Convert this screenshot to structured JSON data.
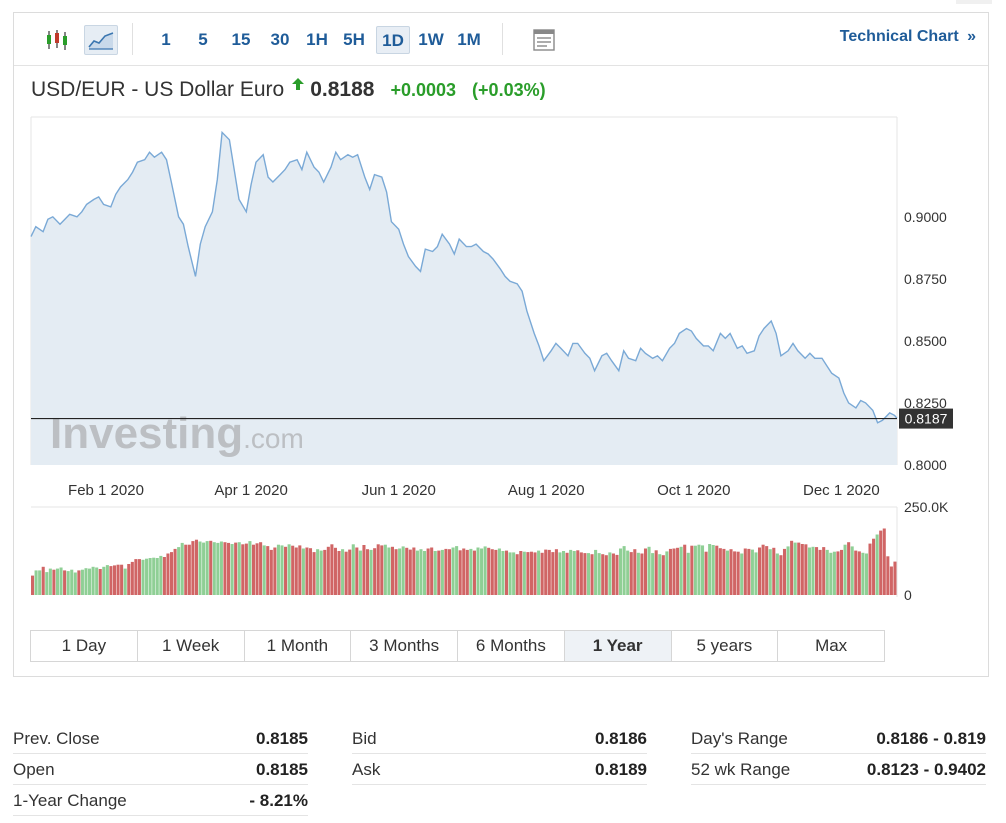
{
  "toolbar": {
    "candle_icon": "candlestick-icon",
    "area_icon": "area-chart-icon",
    "timeframes": [
      "1",
      "5",
      "15",
      "30",
      "1H",
      "5H",
      "1D",
      "1W",
      "1M"
    ],
    "active_timeframe": "1D",
    "settings_icon": "chart-settings-icon",
    "technical_label": "Technical Chart",
    "technical_arrow": "»"
  },
  "header": {
    "pair": "USD/EUR - US Dollar Euro",
    "last": "0.8188",
    "change": "+0.0003",
    "change_pct": "(+0.03%)"
  },
  "colors": {
    "line": "#7aa9d6",
    "area": "#e4ecf3",
    "up_bar": "#8fcf95",
    "down_bar": "#d06565",
    "positive": "#2a9d2a",
    "link": "#1f5c99"
  },
  "chart_data": {
    "type": "area",
    "price": {
      "y_ticks": [
        "0.9000",
        "0.8750",
        "0.8500",
        "0.8250",
        "0.8000"
      ],
      "y_values": [
        0.9,
        0.875,
        0.85,
        0.825,
        0.8
      ],
      "ylim": [
        0.8,
        0.9402
      ],
      "x_ticks": [
        "Feb 1 2020",
        "Apr 1 2020",
        "Jun 1 2020",
        "Aug 1 2020",
        "Oct 1 2020",
        "Dec 1 2020"
      ],
      "current_value": 0.8187,
      "current_label": "0.8187",
      "series": [
        [
          "2020-01-01",
          0.892
        ],
        [
          "2020-01-03",
          0.896
        ],
        [
          "2020-01-06",
          0.894
        ],
        [
          "2020-01-08",
          0.899
        ],
        [
          "2020-01-10",
          0.9
        ],
        [
          "2020-01-13",
          0.897
        ],
        [
          "2020-01-15",
          0.899
        ],
        [
          "2020-01-17",
          0.901
        ],
        [
          "2020-01-20",
          0.9
        ],
        [
          "2020-01-22",
          0.902
        ],
        [
          "2020-01-24",
          0.905
        ],
        [
          "2020-01-27",
          0.907
        ],
        [
          "2020-01-29",
          0.908
        ],
        [
          "2020-01-31",
          0.905
        ],
        [
          "2020-02-03",
          0.904
        ],
        [
          "2020-02-05",
          0.909
        ],
        [
          "2020-02-07",
          0.912
        ],
        [
          "2020-02-10",
          0.915
        ],
        [
          "2020-02-12",
          0.918
        ],
        [
          "2020-02-14",
          0.922
        ],
        [
          "2020-02-17",
          0.923
        ],
        [
          "2020-02-19",
          0.926
        ],
        [
          "2020-02-21",
          0.924
        ],
        [
          "2020-02-24",
          0.926
        ],
        [
          "2020-02-26",
          0.923
        ],
        [
          "2020-02-28",
          0.914
        ],
        [
          "2020-03-02",
          0.9
        ],
        [
          "2020-03-04",
          0.897
        ],
        [
          "2020-03-06",
          0.888
        ],
        [
          "2020-03-09",
          0.876
        ],
        [
          "2020-03-11",
          0.889
        ],
        [
          "2020-03-13",
          0.896
        ],
        [
          "2020-03-16",
          0.902
        ],
        [
          "2020-03-18",
          0.915
        ],
        [
          "2020-03-20",
          0.934
        ],
        [
          "2020-03-23",
          0.931
        ],
        [
          "2020-03-25",
          0.919
        ],
        [
          "2020-03-27",
          0.907
        ],
        [
          "2020-03-30",
          0.902
        ],
        [
          "2020-04-01",
          0.913
        ],
        [
          "2020-04-03",
          0.922
        ],
        [
          "2020-04-06",
          0.925
        ],
        [
          "2020-04-08",
          0.916
        ],
        [
          "2020-04-10",
          0.914
        ],
        [
          "2020-04-13",
          0.917
        ],
        [
          "2020-04-15",
          0.919
        ],
        [
          "2020-04-17",
          0.922
        ],
        [
          "2020-04-20",
          0.923
        ],
        [
          "2020-04-22",
          0.919
        ],
        [
          "2020-04-24",
          0.926
        ],
        [
          "2020-04-27",
          0.92
        ],
        [
          "2020-04-29",
          0.918
        ],
        [
          "2020-05-01",
          0.914
        ],
        [
          "2020-05-04",
          0.92
        ],
        [
          "2020-05-06",
          0.926
        ],
        [
          "2020-05-08",
          0.923
        ],
        [
          "2020-05-11",
          0.925
        ],
        [
          "2020-05-13",
          0.924
        ],
        [
          "2020-05-15",
          0.925
        ],
        [
          "2020-05-18",
          0.916
        ],
        [
          "2020-05-20",
          0.911
        ],
        [
          "2020-05-22",
          0.917
        ],
        [
          "2020-05-25",
          0.916
        ],
        [
          "2020-05-27",
          0.91
        ],
        [
          "2020-05-29",
          0.898
        ],
        [
          "2020-06-01",
          0.895
        ],
        [
          "2020-06-03",
          0.889
        ],
        [
          "2020-06-05",
          0.884
        ],
        [
          "2020-06-08",
          0.88
        ],
        [
          "2020-06-10",
          0.878
        ],
        [
          "2020-06-12",
          0.887
        ],
        [
          "2020-06-15",
          0.886
        ],
        [
          "2020-06-17",
          0.888
        ],
        [
          "2020-06-19",
          0.893
        ],
        [
          "2020-06-22",
          0.889
        ],
        [
          "2020-06-24",
          0.885
        ],
        [
          "2020-06-26",
          0.891
        ],
        [
          "2020-06-29",
          0.888
        ],
        [
          "2020-07-01",
          0.888
        ],
        [
          "2020-07-03",
          0.889
        ],
        [
          "2020-07-06",
          0.886
        ],
        [
          "2020-07-08",
          0.885
        ],
        [
          "2020-07-10",
          0.883
        ],
        [
          "2020-07-13",
          0.879
        ],
        [
          "2020-07-15",
          0.876
        ],
        [
          "2020-07-17",
          0.874
        ],
        [
          "2020-07-20",
          0.873
        ],
        [
          "2020-07-22",
          0.87
        ],
        [
          "2020-07-24",
          0.862
        ],
        [
          "2020-07-27",
          0.853
        ],
        [
          "2020-07-29",
          0.848
        ],
        [
          "2020-07-31",
          0.842
        ],
        [
          "2020-08-03",
          0.846
        ],
        [
          "2020-08-05",
          0.849
        ],
        [
          "2020-08-07",
          0.847
        ],
        [
          "2020-08-10",
          0.844
        ],
        [
          "2020-08-12",
          0.849
        ],
        [
          "2020-08-14",
          0.849
        ],
        [
          "2020-08-17",
          0.845
        ],
        [
          "2020-08-19",
          0.843
        ],
        [
          "2020-08-21",
          0.838
        ],
        [
          "2020-08-24",
          0.844
        ],
        [
          "2020-08-26",
          0.845
        ],
        [
          "2020-08-28",
          0.842
        ],
        [
          "2020-08-31",
          0.838
        ],
        [
          "2020-09-02",
          0.846
        ],
        [
          "2020-09-04",
          0.843
        ],
        [
          "2020-09-07",
          0.842
        ],
        [
          "2020-09-09",
          0.847
        ],
        [
          "2020-09-11",
          0.845
        ],
        [
          "2020-09-14",
          0.843
        ],
        [
          "2020-09-16",
          0.844
        ],
        [
          "2020-09-18",
          0.842
        ],
        [
          "2020-09-21",
          0.847
        ],
        [
          "2020-09-23",
          0.849
        ],
        [
          "2020-09-25",
          0.853
        ],
        [
          "2020-09-28",
          0.855
        ],
        [
          "2020-09-30",
          0.854
        ],
        [
          "2020-10-02",
          0.851
        ],
        [
          "2020-10-05",
          0.848
        ],
        [
          "2020-10-07",
          0.848
        ],
        [
          "2020-10-09",
          0.846
        ],
        [
          "2020-10-12",
          0.853
        ],
        [
          "2020-10-14",
          0.851
        ],
        [
          "2020-10-16",
          0.853
        ],
        [
          "2020-10-19",
          0.847
        ],
        [
          "2020-10-21",
          0.848
        ],
        [
          "2020-10-23",
          0.845
        ],
        [
          "2020-10-26",
          0.846
        ],
        [
          "2020-10-28",
          0.852
        ],
        [
          "2020-10-30",
          0.855
        ],
        [
          "2020-11-02",
          0.858
        ],
        [
          "2020-11-04",
          0.853
        ],
        [
          "2020-11-06",
          0.844
        ],
        [
          "2020-11-09",
          0.846
        ],
        [
          "2020-11-11",
          0.849
        ],
        [
          "2020-11-13",
          0.846
        ],
        [
          "2020-11-16",
          0.843
        ],
        [
          "2020-11-18",
          0.845
        ],
        [
          "2020-11-20",
          0.843
        ],
        [
          "2020-11-23",
          0.843
        ],
        [
          "2020-11-25",
          0.84
        ],
        [
          "2020-11-27",
          0.837
        ],
        [
          "2020-11-30",
          0.835
        ],
        [
          "2020-12-02",
          0.829
        ],
        [
          "2020-12-04",
          0.825
        ],
        [
          "2020-12-07",
          0.823
        ],
        [
          "2020-12-09",
          0.826
        ],
        [
          "2020-12-11",
          0.825
        ],
        [
          "2020-12-14",
          0.822
        ],
        [
          "2020-12-16",
          0.817
        ],
        [
          "2020-12-18",
          0.818
        ],
        [
          "2020-12-21",
          0.821
        ],
        [
          "2020-12-23",
          0.82
        ],
        [
          "2020-12-24",
          0.8188
        ]
      ]
    },
    "volume": {
      "y_ticks": [
        "250.0K",
        "0"
      ],
      "ylim": [
        0,
        250000
      ],
      "up": [
        0,
        1,
        1,
        0,
        1,
        1,
        0,
        1,
        1,
        0,
        1,
        1,
        1,
        0,
        1,
        1,
        1,
        1,
        1,
        0,
        1,
        1,
        0,
        0,
        0,
        0,
        1,
        0,
        0,
        0,
        0,
        1,
        1,
        1,
        1,
        1,
        1,
        0,
        0,
        0,
        0,
        1,
        1,
        0,
        0,
        0,
        0,
        1,
        1,
        1,
        0,
        1,
        1,
        1,
        0,
        0,
        1,
        0,
        1,
        0,
        0,
        1,
        0,
        0,
        0,
        1,
        0,
        0,
        0,
        1,
        1,
        0,
        1,
        0,
        0,
        0,
        1,
        0,
        0,
        0,
        1,
        1,
        0,
        0,
        0,
        0,
        0,
        1,
        0,
        0,
        1,
        0,
        1,
        0,
        0,
        1,
        0,
        0,
        0,
        1,
        1,
        0,
        0,
        1,
        1,
        0,
        0,
        0,
        1,
        1,
        1,
        0,
        0,
        1,
        0,
        1,
        0,
        0,
        1,
        1,
        0,
        0,
        0,
        1,
        0,
        1,
        1,
        1,
        0,
        0,
        0,
        1,
        1,
        0,
        1,
        1,
        0,
        0,
        1,
        0,
        0,
        0,
        1,
        0,
        0,
        0,
        0,
        0,
        1,
        1,
        0,
        1,
        1,
        0,
        0,
        0,
        1,
        0,
        1,
        1,
        0,
        0,
        1,
        0,
        0,
        1,
        1,
        1,
        0,
        0,
        1,
        0,
        0,
        1,
        1,
        0,
        1,
        0,
        1,
        0,
        0,
        0,
        1,
        0,
        1,
        0,
        1,
        1,
        1,
        0,
        1,
        1,
        0,
        0,
        0,
        1,
        0,
        0,
        0,
        1,
        0,
        0,
        1,
        1,
        0,
        0,
        0,
        1,
        0,
        1,
        0,
        0,
        1,
        0,
        1,
        0,
        0,
        0,
        1,
        1,
        0,
        0,
        0,
        1,
        1,
        1,
        0,
        0,
        1,
        0,
        1,
        0,
        0,
        1,
        1,
        0,
        0,
        1
      ],
      "values": [
        55000,
        70000,
        70000,
        80000,
        65000,
        75000,
        72000,
        75000,
        78000,
        70000,
        68000,
        72000,
        64000,
        70000,
        72000,
        76000,
        75000,
        80000,
        78000,
        74000,
        80000,
        85000,
        82000,
        84000,
        86000,
        86000,
        75000,
        88000,
        94000,
        102000,
        102000,
        100000,
        103000,
        105000,
        106000,
        105000,
        111000,
        108000,
        118000,
        122000,
        131000,
        136000,
        148000,
        143000,
        143000,
        153000,
        157000,
        152000,
        149000,
        153000,
        154000,
        150000,
        148000,
        152000,
        150000,
        148000,
        145000,
        149000,
        150000,
        144000,
        146000,
        153000,
        143000,
        147000,
        150000,
        141000,
        139000,
        128000,
        135000,
        143000,
        141000,
        137000,
        144000,
        140000,
        135000,
        141000,
        132000,
        135000,
        133000,
        122000,
        130000,
        126000,
        128000,
        137000,
        144000,
        134000,
        125000,
        130000,
        123000,
        129000,
        144000,
        135000,
        126000,
        142000,
        130000,
        128000,
        133000,
        144000,
        141000,
        143000,
        135000,
        137000,
        130000,
        132000,
        138000,
        134000,
        129000,
        135000,
        126000,
        130000,
        125000,
        132000,
        135000,
        125000,
        126000,
        128000,
        131000,
        130000,
        135000,
        139000,
        127000,
        132000,
        128000,
        131000,
        126000,
        135000,
        132000,
        138000,
        134000,
        130000,
        128000,
        132000,
        125000,
        126000,
        121000,
        121000,
        116000,
        125000,
        123000,
        122000,
        123000,
        121000,
        126000,
        120000,
        129000,
        128000,
        122000,
        130000,
        121000,
        125000,
        120000,
        128000,
        125000,
        127000,
        121000,
        119000,
        119000,
        116000,
        128000,
        119000,
        116000,
        113000,
        121000,
        118000,
        114000,
        132000,
        139000,
        126000,
        122000,
        130000,
        120000,
        118000,
        132000,
        137000,
        119000,
        127000,
        116000,
        113000,
        124000,
        131000,
        132000,
        134000,
        137000,
        143000,
        120000,
        140000,
        140000,
        143000,
        141000,
        123000,
        145000,
        142000,
        140000,
        133000,
        131000,
        126000,
        130000,
        124000,
        123000,
        118000,
        132000,
        131000,
        129000,
        121000,
        135000,
        143000,
        139000,
        130000,
        134000,
        118000,
        113000,
        131000,
        138000,
        154000,
        149000,
        149000,
        145000,
        144000,
        135000,
        137000,
        136000,
        128000,
        136000,
        128000,
        120000,
        123000,
        124000,
        128000,
        143000,
        150000,
        138000,
        126000,
        124000,
        120000,
        118000,
        146000,
        160000,
        172000,
        183000,
        189000,
        110000,
        81000,
        95000
      ]
    },
    "watermark": "Investing.com"
  },
  "ranges": [
    "1 Day",
    "1 Week",
    "1 Month",
    "3 Months",
    "6 Months",
    "1 Year",
    "5 years",
    "Max"
  ],
  "active_range": "1 Year",
  "stats": {
    "col1": [
      {
        "label": "Prev. Close",
        "value": "0.8185"
      },
      {
        "label": "Open",
        "value": "0.8185"
      },
      {
        "label": "1-Year Change",
        "value": "- 8.21%"
      }
    ],
    "col2": [
      {
        "label": "Bid",
        "value": "0.8186"
      },
      {
        "label": "Ask",
        "value": "0.8189"
      }
    ],
    "col3": [
      {
        "label": "Day's Range",
        "value": "0.8186 - 0.819"
      },
      {
        "label": "52 wk Range",
        "value": "0.8123 - 0.9402"
      }
    ]
  }
}
